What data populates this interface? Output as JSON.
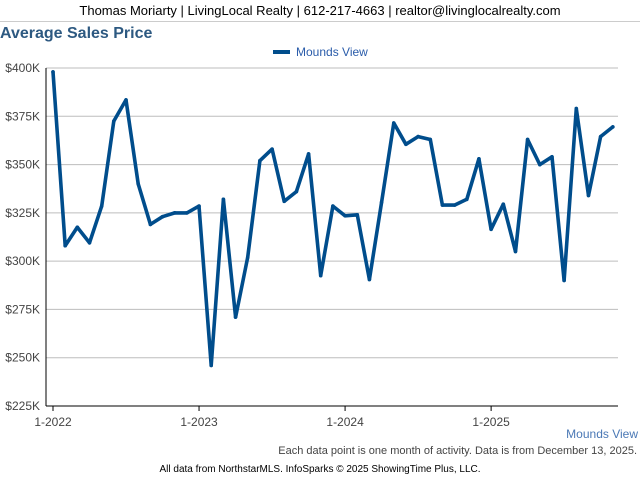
{
  "header": {
    "contact": "Thomas Moriarty | LivingLocal Realty | 612-217-4663 | realtor@livinglocalrealty.com"
  },
  "chart_data": {
    "type": "line",
    "title": "Average Sales Price",
    "xlabel": "",
    "ylabel": "",
    "ylim": [
      225000,
      400000
    ],
    "yticks": [
      225000,
      250000,
      275000,
      300000,
      325000,
      350000,
      375000,
      400000
    ],
    "ytick_labels": [
      "$225K",
      "$250K",
      "$275K",
      "$300K",
      "$325K",
      "$350K",
      "$375K",
      "$400K"
    ],
    "xtick_labels": [
      "1-2022",
      "1-2023",
      "1-2024",
      "1-2025"
    ],
    "xtick_index": [
      0,
      12,
      24,
      36
    ],
    "grid": true,
    "legend": "top-center",
    "x": [
      "1-2022",
      "2-2022",
      "3-2022",
      "4-2022",
      "5-2022",
      "6-2022",
      "7-2022",
      "8-2022",
      "9-2022",
      "10-2022",
      "11-2022",
      "12-2022",
      "1-2023",
      "2-2023",
      "3-2023",
      "4-2023",
      "5-2023",
      "6-2023",
      "7-2023",
      "8-2023",
      "9-2023",
      "10-2023",
      "11-2023",
      "12-2023",
      "1-2024",
      "2-2024",
      "3-2024",
      "4-2024",
      "5-2024",
      "6-2024",
      "7-2024",
      "8-2024",
      "9-2024",
      "10-2024",
      "11-2024",
      "12-2024",
      "1-2025",
      "2-2025",
      "3-2025",
      "4-2025",
      "5-2025",
      "6-2025",
      "7-2025",
      "8-2025",
      "9-2025",
      "10-2025",
      "11-2025"
    ],
    "series": [
      {
        "name": "Mounds View",
        "color": "#004d8c",
        "values": [
          398000,
          308000,
          317500,
          309500,
          328500,
          372500,
          383500,
          340000,
          319000,
          323000,
          325000,
          325000,
          328500,
          246000,
          332000,
          271000,
          302000,
          352000,
          358000,
          331000,
          336000,
          355500,
          292500,
          328500,
          323500,
          324000,
          290500,
          330500,
          371500,
          360500,
          364500,
          363000,
          329000,
          329000,
          332000,
          353000,
          316500,
          329500,
          305000,
          363000,
          350000,
          354000,
          290000,
          379000,
          334000,
          364500,
          369500
        ]
      }
    ]
  },
  "footer": {
    "corner_label": "Mounds View",
    "note": "Each data point is one month of activity. Data is from December 13, 2025.",
    "source": "All data from NorthstarMLS. InfoSparks © 2025 ShowingTime Plus, LLC."
  }
}
